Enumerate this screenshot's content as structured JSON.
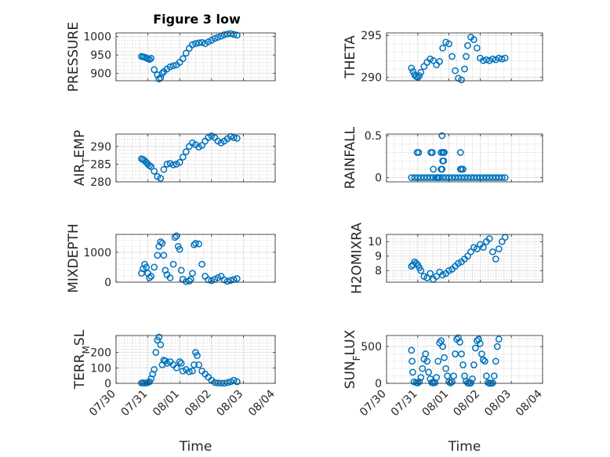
{
  "figure": {
    "title": "Figure 3 low",
    "marker_color": "#0072BD",
    "marker": "circle"
  },
  "chart_data": [
    {
      "type": "scatter",
      "subplot": "PRESSURE",
      "ylabel": "PRESSURE",
      "title": "Figure 3 low",
      "xlabel": "",
      "xlim": [
        "07/30",
        "08/04"
      ],
      "xticklabels": [],
      "ylim": [
        880,
        1010
      ],
      "yticks": [
        900,
        950,
        1000
      ],
      "grid": true,
      "minor_grid": true,
      "x": [
        0.8,
        0.85,
        0.9,
        0.95,
        1.0,
        1.05,
        1.1,
        1.2,
        1.3,
        1.35,
        1.4,
        1.45,
        1.5,
        1.6,
        1.7,
        1.8,
        1.9,
        2.0,
        2.1,
        2.2,
        2.3,
        2.4,
        2.5,
        2.6,
        2.7,
        2.8,
        2.9,
        3.0,
        3.1,
        3.2,
        3.3,
        3.4,
        3.5,
        3.6,
        3.7,
        3.8
      ],
      "y": [
        946,
        945,
        944,
        942,
        940,
        938,
        941,
        910,
        896,
        885,
        888,
        900,
        905,
        912,
        918,
        921,
        923,
        930,
        940,
        955,
        968,
        978,
        981,
        983,
        984,
        981,
        986,
        990,
        995,
        998,
        1001,
        1005,
        1007,
        1008,
        1006,
        1004
      ]
    },
    {
      "type": "scatter",
      "subplot": "THETA",
      "ylabel": "THETA",
      "xlabel": "",
      "xlim": [
        "07/30",
        "08/04"
      ],
      "xticklabels": [],
      "ylim": [
        289.6,
        295.3
      ],
      "yticks": [
        290,
        295
      ],
      "grid": true,
      "minor_grid": true,
      "x": [
        0.8,
        0.85,
        0.9,
        0.95,
        1.0,
        1.05,
        1.1,
        1.2,
        1.3,
        1.4,
        1.5,
        1.6,
        1.7,
        1.8,
        1.9,
        2.0,
        2.1,
        2.2,
        2.3,
        2.4,
        2.5,
        2.55,
        2.6,
        2.7,
        2.8,
        2.9,
        3.0,
        3.1,
        3.2,
        3.3,
        3.4,
        3.5,
        3.6,
        3.7,
        3.8
      ],
      "y": [
        291.1,
        290.7,
        290.3,
        290.1,
        290.0,
        290.2,
        290.6,
        291.3,
        291.8,
        292.2,
        292.0,
        291.5,
        291.9,
        293.5,
        294.2,
        294.0,
        292.5,
        290.8,
        289.9,
        289.7,
        291.0,
        292.5,
        293.8,
        294.8,
        294.5,
        293.5,
        292.3,
        292.0,
        292.1,
        292.0,
        292.2,
        292.1,
        292.3,
        292.2,
        292.3
      ]
    },
    {
      "type": "scatter",
      "subplot": "AIR_TEMP",
      "ylabel": "AIR_TEMP",
      "xlabel": "",
      "xlim": [
        "07/30",
        "08/04"
      ],
      "xticklabels": [],
      "ylim": [
        280,
        293.5
      ],
      "yticks": [
        280,
        285,
        290
      ],
      "grid": true,
      "minor_grid": true,
      "x": [
        0.8,
        0.85,
        0.9,
        0.95,
        1.0,
        1.05,
        1.1,
        1.2,
        1.3,
        1.4,
        1.5,
        1.6,
        1.7,
        1.8,
        1.9,
        2.0,
        2.1,
        2.2,
        2.3,
        2.4,
        2.5,
        2.6,
        2.7,
        2.8,
        2.9,
        3.0,
        3.1,
        3.2,
        3.3,
        3.4,
        3.5,
        3.6,
        3.7,
        3.8
      ],
      "y": [
        286.5,
        286.3,
        286.0,
        285.5,
        285.0,
        284.6,
        284.3,
        283.0,
        281.5,
        281.0,
        283.5,
        285.0,
        285.2,
        284.8,
        285.0,
        285.5,
        287.0,
        288.5,
        290.0,
        291.0,
        290.5,
        289.8,
        290.3,
        291.5,
        292.5,
        293.0,
        292.5,
        291.5,
        291.0,
        291.5,
        292.2,
        292.8,
        292.5,
        292.3
      ]
    },
    {
      "type": "scatter",
      "subplot": "RAINFALL",
      "ylabel": "RAINFALL",
      "xlabel": "",
      "xlim": [
        "07/30",
        "08/04"
      ],
      "xticklabels": [],
      "ylim": [
        -0.05,
        0.52
      ],
      "yticks": [
        0,
        0.5
      ],
      "grid": true,
      "minor_grid": true,
      "x": [
        0.8,
        0.9,
        1.0,
        1.1,
        1.2,
        1.3,
        1.4,
        1.5,
        1.6,
        1.7,
        1.8,
        1.9,
        2.0,
        2.1,
        2.2,
        2.3,
        2.4,
        2.5,
        2.6,
        2.7,
        2.8,
        2.9,
        3.0,
        3.1,
        3.2,
        3.3,
        3.4,
        3.5,
        3.6,
        3.7,
        3.8,
        0.98,
        1.03,
        1.42,
        1.47,
        1.5,
        1.62,
        1.65,
        1.75,
        1.78,
        1.8,
        1.82,
        1.85,
        1.75,
        1.8,
        1.83,
        1.78,
        2.37,
        2.37,
        2.4,
        2.45
      ],
      "y": [
        0,
        0,
        0,
        0,
        0,
        0,
        0,
        0,
        0,
        0,
        0,
        0,
        0,
        0,
        0,
        0,
        0,
        0,
        0,
        0,
        0,
        0,
        0,
        0,
        0,
        0,
        0,
        0,
        0,
        0,
        0,
        0.3,
        0.3,
        0.3,
        0.3,
        0.1,
        0,
        0,
        0.1,
        0.1,
        0.3,
        0.3,
        0.3,
        0.3,
        0.2,
        0.2,
        0.5,
        0.3,
        0.1,
        0.1,
        0.1
      ]
    },
    {
      "type": "scatter",
      "subplot": "MIXDEPTH",
      "ylabel": "MIXDEPTH",
      "xlabel": "",
      "xlim": [
        "07/30",
        "08/04"
      ],
      "xticklabels": [],
      "ylim": [
        0,
        1600
      ],
      "yticks": [
        0,
        1000
      ],
      "grid": true,
      "minor_grid": true,
      "x": [
        0.8,
        0.85,
        0.9,
        0.95,
        1.0,
        1.05,
        1.1,
        1.2,
        1.3,
        1.35,
        1.4,
        1.45,
        1.5,
        1.55,
        1.6,
        1.7,
        1.8,
        1.85,
        1.9,
        1.95,
        2.0,
        2.05,
        2.1,
        2.2,
        2.3,
        2.35,
        2.4,
        2.45,
        2.5,
        2.6,
        2.7,
        2.8,
        2.9,
        3.0,
        3.1,
        3.2,
        3.3,
        3.4,
        3.5,
        3.6,
        3.7,
        3.8
      ],
      "y": [
        300,
        450,
        600,
        500,
        300,
        150,
        200,
        500,
        900,
        1200,
        1350,
        1300,
        900,
        400,
        250,
        150,
        600,
        1500,
        1550,
        1200,
        1100,
        400,
        100,
        20,
        40,
        100,
        300,
        1250,
        1300,
        1280,
        600,
        200,
        80,
        50,
        100,
        150,
        200,
        80,
        30,
        60,
        90,
        120
      ]
    },
    {
      "type": "scatter",
      "subplot": "H2OMIXRA",
      "ylabel": "H2OMIXRA",
      "xlabel": "",
      "xlim": [
        "07/30",
        "08/04"
      ],
      "xticklabels": [],
      "ylim": [
        7.2,
        10.5
      ],
      "yticks": [
        8,
        9,
        10
      ],
      "grid": true,
      "minor_grid": true,
      "x": [
        0.8,
        0.85,
        0.9,
        0.95,
        1.0,
        1.05,
        1.1,
        1.2,
        1.3,
        1.4,
        1.5,
        1.6,
        1.7,
        1.8,
        1.9,
        2.0,
        2.1,
        2.2,
        2.3,
        2.4,
        2.5,
        2.6,
        2.7,
        2.8,
        2.9,
        3.0,
        3.1,
        3.2,
        3.3,
        3.4,
        3.5,
        3.6,
        3.7,
        3.8
      ],
      "y": [
        8.3,
        8.4,
        8.6,
        8.5,
        8.4,
        8.2,
        8.0,
        7.6,
        7.5,
        7.8,
        7.4,
        7.6,
        7.9,
        7.7,
        7.8,
        8.0,
        8.1,
        8.3,
        8.5,
        8.6,
        8.8,
        9.0,
        9.3,
        9.6,
        9.5,
        9.8,
        9.6,
        10.0,
        10.2,
        9.3,
        8.8,
        9.5,
        10.0,
        10.3
      ]
    },
    {
      "type": "scatter",
      "subplot": "TERR_MSL",
      "ylabel": "TERR_MSL",
      "xlabel": "Time",
      "xlim": [
        "07/30",
        "08/04"
      ],
      "xticklabels": [
        "07/30",
        "07/31",
        "08/01",
        "08/02",
        "08/03",
        "08/04"
      ],
      "ylim": [
        0,
        310
      ],
      "yticks": [
        0,
        100,
        200
      ],
      "grid": true,
      "minor_grid": true,
      "x": [
        0.8,
        0.85,
        0.9,
        0.95,
        1.0,
        1.05,
        1.1,
        1.15,
        1.2,
        1.25,
        1.3,
        1.35,
        1.4,
        1.45,
        1.5,
        1.55,
        1.6,
        1.7,
        1.8,
        1.9,
        2.0,
        2.05,
        2.1,
        2.2,
        2.3,
        2.4,
        2.45,
        2.5,
        2.55,
        2.6,
        2.7,
        2.8,
        2.9,
        3.0,
        3.1,
        3.2,
        3.3,
        3.4,
        3.5,
        3.6,
        3.7,
        3.8
      ],
      "y": [
        2,
        3,
        2,
        2,
        5,
        10,
        30,
        60,
        90,
        200,
        280,
        300,
        250,
        120,
        150,
        145,
        130,
        140,
        120,
        100,
        140,
        130,
        80,
        90,
        75,
        80,
        120,
        200,
        180,
        120,
        80,
        60,
        40,
        20,
        5,
        2,
        1,
        1,
        5,
        10,
        20,
        10
      ]
    },
    {
      "type": "scatter",
      "subplot": "SUN_FLUX",
      "ylabel": "SUN_FLUX",
      "xlabel": "Time",
      "xlim": [
        "07/30",
        "08/04"
      ],
      "xticklabels": [
        "07/30",
        "07/31",
        "08/01",
        "08/02",
        "08/03",
        "08/04"
      ],
      "ylim": [
        0,
        650
      ],
      "yticks": [
        0,
        500
      ],
      "grid": true,
      "minor_grid": true,
      "x": [
        0.8,
        0.82,
        0.84,
        0.88,
        0.95,
        1.0,
        1.05,
        1.1,
        1.15,
        1.2,
        1.25,
        1.3,
        1.35,
        1.4,
        1.45,
        1.5,
        1.55,
        1.6,
        1.65,
        1.7,
        1.75,
        1.8,
        1.85,
        1.9,
        1.95,
        2.0,
        2.05,
        2.1,
        2.15,
        2.2,
        2.25,
        2.3,
        2.35,
        2.4,
        2.45,
        2.5,
        2.55,
        2.6,
        2.65,
        2.7,
        2.75,
        2.8,
        2.85,
        2.9,
        2.95,
        3.0,
        3.05,
        3.1,
        3.15,
        3.2,
        3.25,
        3.3,
        3.35,
        3.4,
        3.45,
        3.5,
        3.55,
        3.6
      ],
      "y": [
        450,
        300,
        150,
        20,
        10,
        5,
        20,
        80,
        200,
        330,
        400,
        300,
        150,
        60,
        10,
        5,
        10,
        80,
        300,
        550,
        580,
        500,
        350,
        200,
        100,
        20,
        5,
        20,
        100,
        400,
        600,
        620,
        560,
        400,
        250,
        100,
        30,
        5,
        0,
        5,
        60,
        250,
        480,
        580,
        600,
        540,
        400,
        320,
        300,
        100,
        10,
        0,
        0,
        5,
        100,
        300,
        500,
        600
      ]
    }
  ]
}
